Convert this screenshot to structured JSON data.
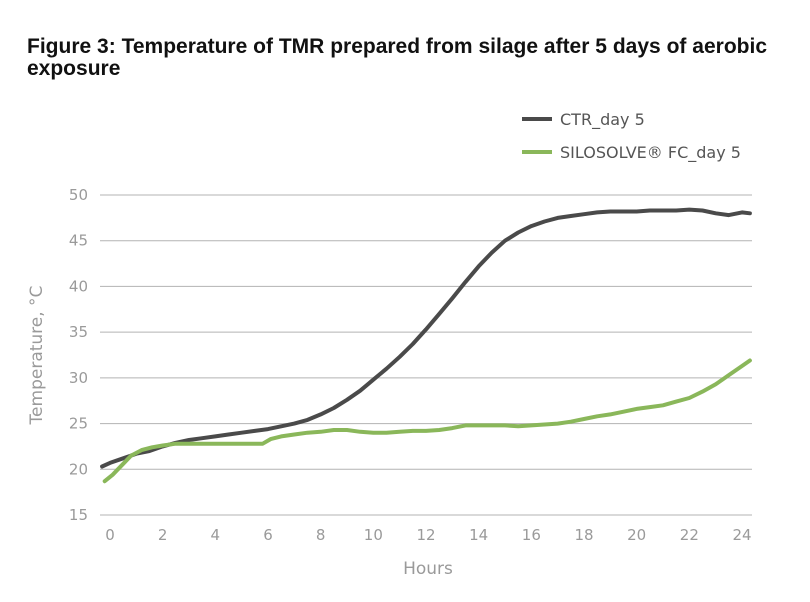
{
  "figure": {
    "title": "Figure 3: Temperature of TMR prepared from silage after 5 days of aerobic exposure"
  },
  "colors": {
    "grid": "#b3b3b3",
    "ctr": "#4a4a4a",
    "silosolve": "#8ab75a"
  },
  "chart_data": {
    "type": "line",
    "title": "Figure 3: Temperature of TMR prepared from silage after 5 days of aerobic exposure",
    "xlabel": "Hours",
    "ylabel": "Temperature, °C",
    "xlim": [
      0,
      24
    ],
    "ylim": [
      15,
      50
    ],
    "xticks": [
      0,
      2,
      4,
      6,
      8,
      10,
      12,
      14,
      16,
      18,
      20,
      22,
      24
    ],
    "yticks": [
      15,
      20,
      25,
      30,
      35,
      40,
      45,
      50
    ],
    "grid": "horizontal",
    "legend": "top-right",
    "series": [
      {
        "name": "CTR_day 5",
        "color": "#4a4a4a",
        "x": [
          -0.3,
          0,
          0.5,
          1,
          1.5,
          2,
          2.5,
          3,
          3.5,
          4,
          4.5,
          5,
          5.5,
          6,
          6.5,
          7,
          7.5,
          8,
          8.5,
          9,
          9.5,
          10,
          10.5,
          11,
          11.5,
          12,
          12.5,
          13,
          13.5,
          14,
          14.5,
          15,
          15.5,
          16,
          16.5,
          17,
          17.5,
          18,
          18.5,
          19,
          19.5,
          20,
          20.5,
          21,
          21.5,
          22,
          22.5,
          23,
          23.5,
          24,
          24.3
        ],
        "y": [
          20.3,
          20.7,
          21.2,
          21.7,
          22.0,
          22.5,
          22.9,
          23.2,
          23.4,
          23.6,
          23.8,
          24.0,
          24.2,
          24.4,
          24.7,
          25.0,
          25.4,
          26.0,
          26.7,
          27.6,
          28.6,
          29.8,
          31.0,
          32.3,
          33.7,
          35.3,
          37.0,
          38.7,
          40.5,
          42.2,
          43.7,
          45.0,
          45.9,
          46.6,
          47.1,
          47.5,
          47.7,
          47.9,
          48.1,
          48.2,
          48.2,
          48.2,
          48.3,
          48.3,
          48.3,
          48.4,
          48.3,
          48.0,
          47.8,
          48.1,
          48.0
        ]
      },
      {
        "name": "SILOSOLVE® FC_day 5",
        "color": "#8ab75a",
        "x": [
          -0.2,
          0.1,
          0.5,
          0.8,
          1.2,
          1.6,
          2.0,
          2.5,
          3,
          3.5,
          4,
          4.5,
          5,
          5.5,
          5.8,
          6.1,
          6.5,
          7,
          7.5,
          8,
          8.5,
          9,
          9.5,
          10,
          10.5,
          11,
          11.5,
          12,
          12.5,
          13,
          13.5,
          14,
          14.5,
          15,
          15.5,
          16,
          16.5,
          17,
          17.5,
          18,
          18.5,
          19,
          19.5,
          20,
          20.5,
          21,
          21.5,
          22,
          22.5,
          23,
          23.5,
          24,
          24.3
        ],
        "y": [
          18.7,
          19.4,
          20.6,
          21.5,
          22.1,
          22.4,
          22.6,
          22.8,
          22.8,
          22.8,
          22.8,
          22.8,
          22.8,
          22.8,
          22.8,
          23.3,
          23.6,
          23.8,
          24.0,
          24.1,
          24.3,
          24.3,
          24.1,
          24.0,
          24.0,
          24.1,
          24.2,
          24.2,
          24.3,
          24.5,
          24.8,
          24.8,
          24.8,
          24.8,
          24.7,
          24.8,
          24.9,
          25.0,
          25.2,
          25.5,
          25.8,
          26.0,
          26.3,
          26.6,
          26.8,
          27.0,
          27.4,
          27.8,
          28.5,
          29.3,
          30.3,
          31.3,
          31.9
        ]
      }
    ]
  }
}
